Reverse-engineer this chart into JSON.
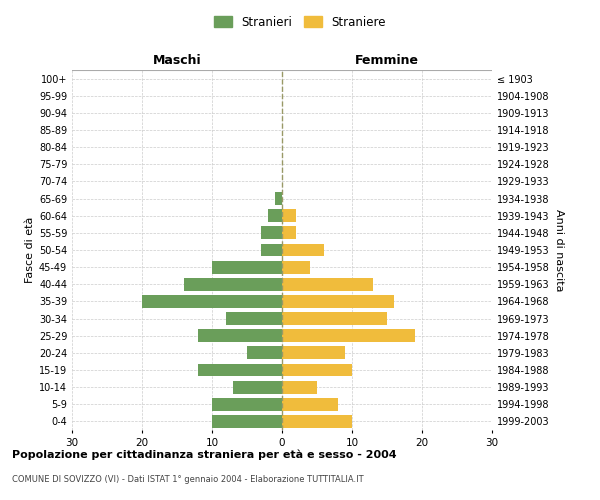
{
  "age_groups": [
    "0-4",
    "5-9",
    "10-14",
    "15-19",
    "20-24",
    "25-29",
    "30-34",
    "35-39",
    "40-44",
    "45-49",
    "50-54",
    "55-59",
    "60-64",
    "65-69",
    "70-74",
    "75-79",
    "80-84",
    "85-89",
    "90-94",
    "95-99",
    "100+"
  ],
  "birth_years": [
    "1999-2003",
    "1994-1998",
    "1989-1993",
    "1984-1988",
    "1979-1983",
    "1974-1978",
    "1969-1973",
    "1964-1968",
    "1959-1963",
    "1954-1958",
    "1949-1953",
    "1944-1948",
    "1939-1943",
    "1934-1938",
    "1929-1933",
    "1924-1928",
    "1919-1923",
    "1914-1918",
    "1909-1913",
    "1904-1908",
    "≤ 1903"
  ],
  "males": [
    10,
    10,
    7,
    12,
    5,
    12,
    8,
    20,
    14,
    10,
    3,
    3,
    2,
    1,
    0,
    0,
    0,
    0,
    0,
    0,
    0
  ],
  "females": [
    10,
    8,
    5,
    10,
    9,
    19,
    15,
    16,
    13,
    4,
    6,
    2,
    2,
    0,
    0,
    0,
    0,
    0,
    0,
    0,
    0
  ],
  "male_color": "#6a9e5a",
  "female_color": "#f0bc3c",
  "center_line_color": "#999966",
  "grid_color": "#cccccc",
  "bg_color": "#ffffff",
  "title": "Popolazione per cittadinanza straniera per età e sesso - 2004",
  "subtitle": "COMUNE DI SOVIZZO (VI) - Dati ISTAT 1° gennaio 2004 - Elaborazione TUTTITALIA.IT",
  "xlabel_left": "Maschi",
  "xlabel_right": "Femmine",
  "ylabel_left": "Fasce di età",
  "ylabel_right": "Anni di nascita",
  "legend_male": "Stranieri",
  "legend_female": "Straniere",
  "xlim": 30,
  "bar_height": 0.75
}
